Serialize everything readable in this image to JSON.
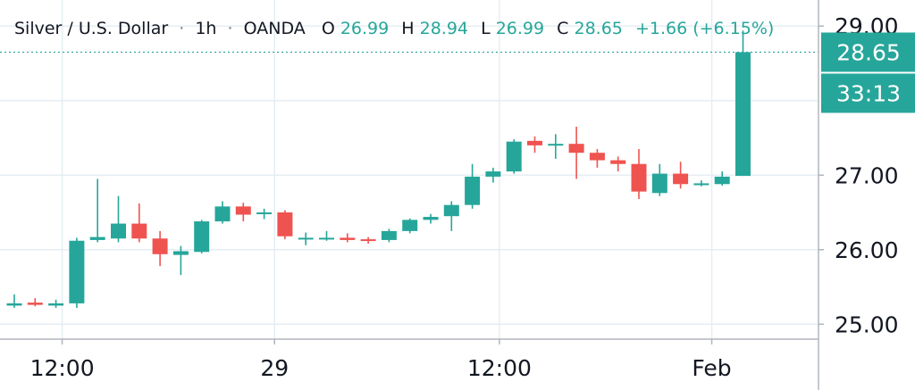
{
  "header": {
    "symbol": "Silver / U.S. Dollar",
    "sep1": "·",
    "interval": "1h",
    "sep2": "·",
    "source": "OANDA",
    "open_label": "O",
    "open_value": "26.99",
    "high_label": "H",
    "high_value": "28.94",
    "low_label": "L",
    "low_value": "26.99",
    "close_label": "C",
    "close_value": "28.65",
    "change": "+1.66 (+6.15%)"
  },
  "price_tag": {
    "value": "28.65",
    "countdown": "33:13"
  },
  "colors": {
    "up": "#26a69a",
    "down": "#ef5350",
    "grid": "#e6eef3",
    "axis": "#b2b5be",
    "text": "#131722"
  },
  "chart_data": {
    "type": "candlestick",
    "ylim": [
      24.8,
      29.35
    ],
    "y_ticks": [
      {
        "value": 25,
        "label": "25.00"
      },
      {
        "value": 26,
        "label": "26.00"
      },
      {
        "value": 27,
        "label": "27.00"
      },
      {
        "value": 29,
        "label": "29.00"
      }
    ],
    "x_ticks": [
      {
        "index": 2.3,
        "label": "12:00"
      },
      {
        "index": 12.5,
        "label": "29"
      },
      {
        "index": 23.3,
        "label": "12:00"
      },
      {
        "index": 33.5,
        "label": "Feb"
      }
    ],
    "last_price": 28.65,
    "candles": [
      {
        "o": 25.25,
        "h": 25.4,
        "l": 25.22,
        "c": 25.28
      },
      {
        "o": 25.29,
        "h": 25.35,
        "l": 25.24,
        "c": 25.26
      },
      {
        "o": 25.25,
        "h": 25.33,
        "l": 25.22,
        "c": 25.28
      },
      {
        "o": 25.28,
        "h": 26.16,
        "l": 25.22,
        "c": 26.12
      },
      {
        "o": 26.13,
        "h": 26.95,
        "l": 26.1,
        "c": 26.17
      },
      {
        "o": 26.15,
        "h": 26.72,
        "l": 26.1,
        "c": 26.35
      },
      {
        "o": 26.35,
        "h": 26.62,
        "l": 26.1,
        "c": 26.15
      },
      {
        "o": 26.15,
        "h": 26.25,
        "l": 25.78,
        "c": 25.94
      },
      {
        "o": 25.93,
        "h": 26.05,
        "l": 25.66,
        "c": 25.98
      },
      {
        "o": 25.97,
        "h": 26.4,
        "l": 25.95,
        "c": 26.38
      },
      {
        "o": 26.38,
        "h": 26.65,
        "l": 26.35,
        "c": 26.58
      },
      {
        "o": 26.58,
        "h": 26.63,
        "l": 26.38,
        "c": 26.47
      },
      {
        "o": 26.5,
        "h": 26.55,
        "l": 26.41,
        "c": 26.5
      },
      {
        "o": 26.5,
        "h": 26.53,
        "l": 26.14,
        "c": 26.18
      },
      {
        "o": 26.16,
        "h": 26.23,
        "l": 26.06,
        "c": 26.16
      },
      {
        "o": 26.15,
        "h": 26.25,
        "l": 26.12,
        "c": 26.16
      },
      {
        "o": 26.16,
        "h": 26.22,
        "l": 26.1,
        "c": 26.13
      },
      {
        "o": 26.14,
        "h": 26.17,
        "l": 26.08,
        "c": 26.12
      },
      {
        "o": 26.13,
        "h": 26.28,
        "l": 26.1,
        "c": 26.25
      },
      {
        "o": 26.25,
        "h": 26.42,
        "l": 26.22,
        "c": 26.4
      },
      {
        "o": 26.4,
        "h": 26.48,
        "l": 26.35,
        "c": 26.44
      },
      {
        "o": 26.45,
        "h": 26.65,
        "l": 26.25,
        "c": 26.6
      },
      {
        "o": 26.6,
        "h": 27.15,
        "l": 26.55,
        "c": 26.98
      },
      {
        "o": 26.98,
        "h": 27.1,
        "l": 26.9,
        "c": 27.05
      },
      {
        "o": 27.05,
        "h": 27.48,
        "l": 27.02,
        "c": 27.45
      },
      {
        "o": 27.46,
        "h": 27.52,
        "l": 27.3,
        "c": 27.4
      },
      {
        "o": 27.4,
        "h": 27.55,
        "l": 27.22,
        "c": 27.42
      },
      {
        "o": 27.42,
        "h": 27.65,
        "l": 26.95,
        "c": 27.3
      },
      {
        "o": 27.3,
        "h": 27.35,
        "l": 27.1,
        "c": 27.2
      },
      {
        "o": 27.2,
        "h": 27.25,
        "l": 27.05,
        "c": 27.15
      },
      {
        "o": 27.15,
        "h": 27.35,
        "l": 26.68,
        "c": 26.78
      },
      {
        "o": 26.76,
        "h": 27.15,
        "l": 26.72,
        "c": 27.02
      },
      {
        "o": 27.02,
        "h": 27.18,
        "l": 26.82,
        "c": 26.88
      },
      {
        "o": 26.88,
        "h": 26.93,
        "l": 26.85,
        "c": 26.89
      },
      {
        "o": 26.88,
        "h": 27.05,
        "l": 26.86,
        "c": 26.98
      },
      {
        "o": 26.99,
        "h": 28.94,
        "l": 26.99,
        "c": 28.65
      }
    ]
  }
}
